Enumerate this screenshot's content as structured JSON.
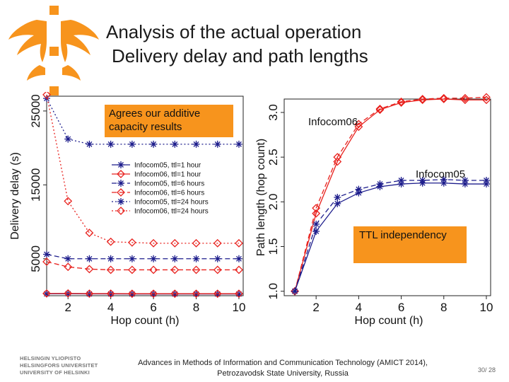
{
  "title": {
    "line1": "Analysis of the actual operation",
    "line2": "Delivery delay and path lengths"
  },
  "colors": {
    "accent": "#f7941d",
    "red": "#e8211d",
    "blue": "#1d1d8c",
    "logo": "#f7941d"
  },
  "left_chart_callout": "Agrees our additive capacity results",
  "right_chart_labels": {
    "infocom06": "Infocom06",
    "infocom05": "Infocom05",
    "ttl": "TTL independency"
  },
  "footer": {
    "line1": "Advances in Methods of Information and Communication Technology  (AMICT 2014),",
    "line2": "Petrozavodsk State University, Russia"
  },
  "university": [
    "HELSINGIN YLIOPISTO",
    "HELSINGFORS UNIVERSITET",
    "UNIVERSITY OF HELSINKI"
  ],
  "page_number": "30/ 28",
  "chart_data": [
    {
      "type": "line",
      "title": "",
      "xlabel": "Hop count (h)",
      "ylabel": "Delivery delay (s)",
      "xlim": [
        1,
        10.2
      ],
      "ylim": [
        0,
        27000
      ],
      "x_ticks": [
        2,
        4,
        6,
        8,
        10
      ],
      "y_ticks": [
        5000,
        15000,
        25000
      ],
      "x": [
        1,
        2,
        3,
        4,
        5,
        6,
        7,
        8,
        9,
        10
      ],
      "legend_position": "center-right",
      "series": [
        {
          "name": "Infocom05, ttl=1 hour",
          "color": "#1d1d8c",
          "marker": "star",
          "dash": "solid",
          "values": [
            250,
            270,
            240,
            240,
            230,
            230,
            230,
            230,
            230,
            230
          ]
        },
        {
          "name": "Infocom06, ttl=1 hour",
          "color": "#e8211d",
          "marker": "diamond",
          "dash": "solid",
          "values": [
            300,
            310,
            280,
            280,
            270,
            270,
            270,
            270,
            270,
            270
          ]
        },
        {
          "name": "Infocom05, ttl=6 hours",
          "color": "#1d1d8c",
          "marker": "star",
          "dash": "dashed",
          "values": [
            5600,
            5000,
            5000,
            5000,
            5000,
            5000,
            5000,
            5000,
            5000,
            5000
          ]
        },
        {
          "name": "Infocom06, ttl=6 hours",
          "color": "#e8211d",
          "marker": "diamond",
          "dash": "dashed",
          "values": [
            4600,
            3900,
            3600,
            3500,
            3500,
            3500,
            3500,
            3500,
            3500,
            3500
          ]
        },
        {
          "name": "Infocom05, ttl=24 hours",
          "color": "#1d1d8c",
          "marker": "star",
          "dash": "dotted",
          "values": [
            26700,
            21200,
            20500,
            20500,
            20500,
            20500,
            20500,
            20500,
            20500,
            20500
          ]
        },
        {
          "name": "Infocom06, ttl=24 hours",
          "color": "#e8211d",
          "marker": "diamond",
          "dash": "dotted",
          "values": [
            27200,
            12800,
            8500,
            7300,
            7200,
            7100,
            7100,
            7100,
            7100,
            7100
          ]
        }
      ]
    },
    {
      "type": "line",
      "title": "",
      "xlabel": "Hop count (h)",
      "ylabel": "Path length (hop count)",
      "xlim": [
        0.5,
        10.2
      ],
      "ylim": [
        0.95,
        3.15
      ],
      "x_ticks": [
        2,
        4,
        6,
        8,
        10
      ],
      "y_ticks": [
        1.0,
        1.5,
        2.0,
        2.5,
        3.0
      ],
      "x": [
        1,
        2,
        3,
        4,
        5,
        6,
        7,
        8,
        9,
        10
      ],
      "series": [
        {
          "name": "Infocom06 (dashed)",
          "color": "#e8211d",
          "marker": "diamond",
          "dash": "dashed",
          "values": [
            1.0,
            1.93,
            2.5,
            2.87,
            3.04,
            3.12,
            3.15,
            3.16,
            3.16,
            3.17
          ]
        },
        {
          "name": "Infocom06 (solid)",
          "color": "#e8211d",
          "marker": "diamond",
          "dash": "solid",
          "values": [
            1.0,
            1.87,
            2.45,
            2.84,
            3.03,
            3.11,
            3.14,
            3.15,
            3.14,
            3.14
          ]
        },
        {
          "name": "Infocom05 (dashed)",
          "color": "#1d1d8c",
          "marker": "star",
          "dash": "dashed",
          "values": [
            1.0,
            1.75,
            2.05,
            2.14,
            2.2,
            2.24,
            2.24,
            2.25,
            2.24,
            2.24
          ]
        },
        {
          "name": "Infocom05 (solid)",
          "color": "#1d1d8c",
          "marker": "star",
          "dash": "solid",
          "values": [
            1.0,
            1.67,
            1.98,
            2.1,
            2.17,
            2.2,
            2.21,
            2.21,
            2.2,
            2.2
          ]
        }
      ]
    }
  ]
}
